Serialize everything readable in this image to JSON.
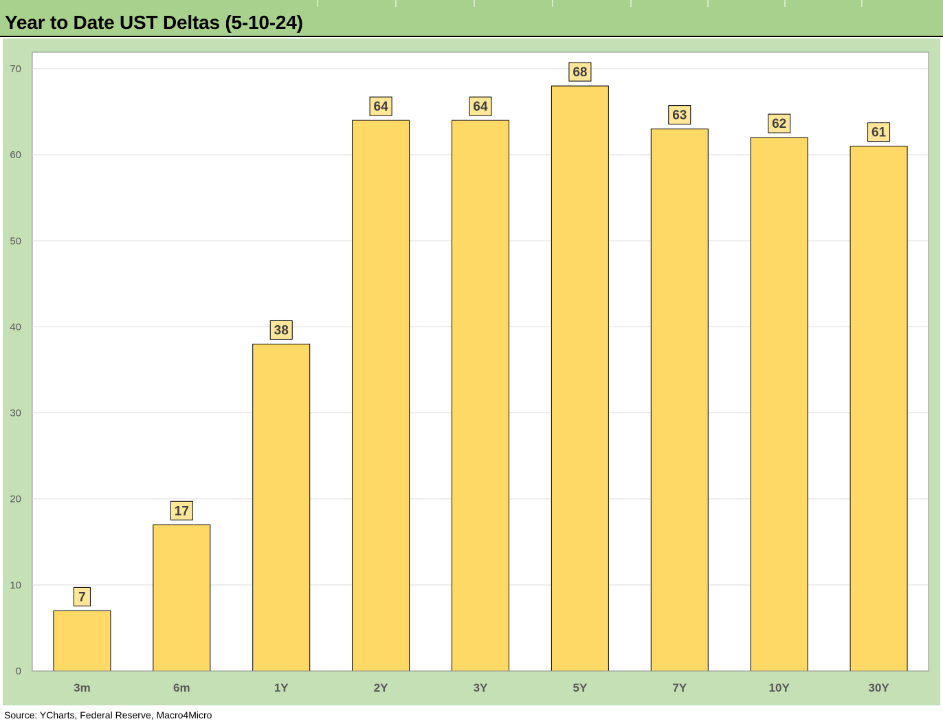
{
  "title": "Year to Date UST Deltas (5-10-24)",
  "source": "Source: YCharts, Federal Reserve, Macro4Micro",
  "colors": {
    "header_bg": "#a9d18e",
    "chart_bg": "#c5e0b4",
    "plot_bg": "#ffffff",
    "bar_fill": "#ffd966",
    "label_fill": "#ffe699",
    "grid": "#d9d9d9"
  },
  "chart_data": {
    "type": "bar",
    "categories": [
      "3m",
      "6m",
      "1Y",
      "2Y",
      "3Y",
      "5Y",
      "7Y",
      "10Y",
      "30Y"
    ],
    "values": [
      7,
      17,
      38,
      64,
      64,
      68,
      63,
      62,
      61
    ],
    "ylim": [
      0,
      70
    ],
    "yticks": [
      0,
      10,
      20,
      30,
      40,
      50,
      60,
      70
    ],
    "grid": true,
    "legend": "none",
    "data_labels": true
  }
}
